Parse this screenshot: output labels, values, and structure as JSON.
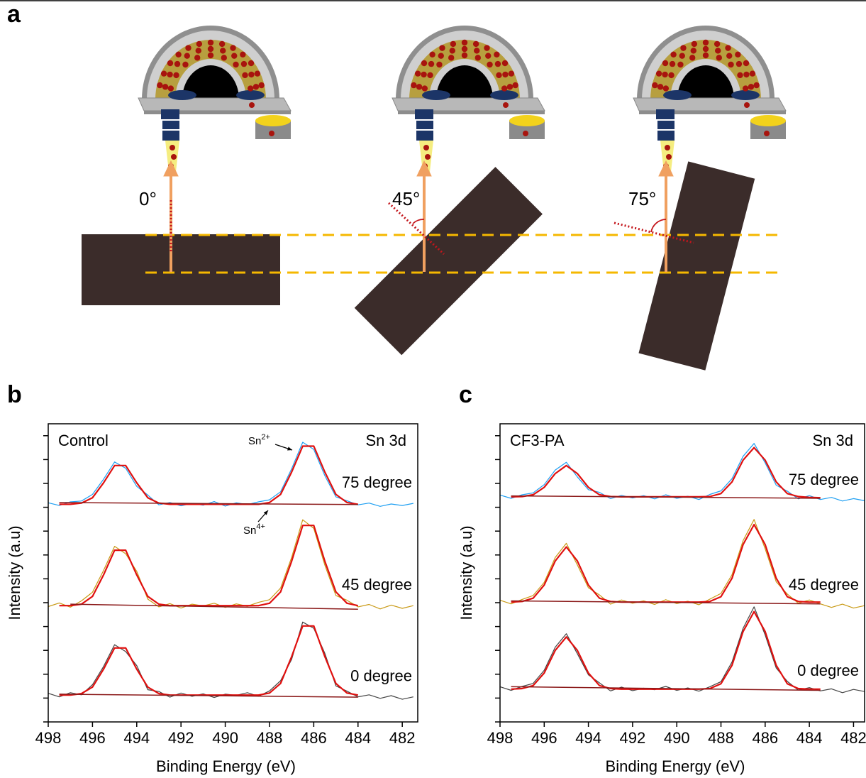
{
  "diagram": {
    "label": "a",
    "angles": [
      "0°",
      "45°",
      "75°"
    ]
  },
  "chart_data": [
    {
      "type": "line",
      "panel": "b",
      "sample": "Control",
      "region": "Sn 3d",
      "x_label": "Binding Energy (eV)",
      "y_label": "Intensity (a.u)",
      "xlim": [
        498,
        481.3
      ],
      "xticks": [
        498,
        496,
        494,
        492,
        490,
        488,
        486,
        484,
        482
      ],
      "ylim": [
        0,
        100
      ],
      "yticks": [
        0,
        8,
        16,
        24,
        32,
        40,
        48,
        56,
        64,
        72,
        80,
        88,
        96
      ],
      "ytick_labels": false,
      "annotations": [
        {
          "text": "Sn",
          "sup": "2+"
        },
        {
          "text": "Sn",
          "sup": "4+"
        }
      ],
      "x": [
        498,
        497.5,
        497,
        496.5,
        496,
        495.5,
        495,
        494.5,
        494,
        493.5,
        493,
        492.5,
        492,
        491.5,
        491,
        490.5,
        490,
        489.5,
        489,
        488.5,
        488,
        487.5,
        487,
        486.5,
        486,
        485.5,
        485,
        484.5,
        484,
        483.5,
        483,
        482.5,
        482,
        481.5
      ],
      "series": [
        {
          "name": "75 degree",
          "color": "#1e9ff2",
          "values": [
            73.5,
            72.6,
            73.8,
            74.1,
            76.3,
            81.4,
            87.2,
            85.1,
            79.0,
            76.1,
            72.8,
            73.6,
            72.5,
            73.3,
            72.7,
            73.9,
            72.4,
            73.5,
            72.9,
            73.8,
            74.5,
            77.2,
            84.9,
            93.8,
            91.4,
            82.6,
            75.5,
            74.2,
            72.8,
            73.4,
            72.3,
            73.1,
            72.6,
            73.3
          ]
        },
        {
          "color": "#e0100f",
          "values": [
            null,
            73,
            73,
            73.4,
            75.2,
            80.2,
            86.0,
            86.0,
            80.2,
            75.2,
            73.4,
            73,
            73,
            73,
            73,
            73,
            73,
            73,
            73,
            73,
            73.6,
            76.3,
            83.8,
            92.5,
            92.5,
            83.8,
            76.3,
            73.6,
            73,
            null,
            null,
            null,
            null,
            null
          ]
        },
        {
          "color": "#8b1a1a",
          "x": [
            497.5,
            484
          ],
          "values": [
            73.6,
            72.9
          ]
        },
        {
          "name": "45 degree",
          "color": "#c99a16",
          "values": [
            38.7,
            39.9,
            38.5,
            40.6,
            43.5,
            50.8,
            58.9,
            56.4,
            50.5,
            41.2,
            38.6,
            39.7,
            38.2,
            39.5,
            38.9,
            39.8,
            38.4,
            39.6,
            38.8,
            40.1,
            41.0,
            44.9,
            55.2,
            67.8,
            64.9,
            52.6,
            42.4,
            40.8,
            38.6,
            39.4,
            37.9,
            39.2,
            38.1,
            39.0
          ]
        },
        {
          "color": "#e0100f",
          "values": [
            null,
            39,
            39,
            39.5,
            42.1,
            49.3,
            57.6,
            57.6,
            49.3,
            42.1,
            39.5,
            39,
            39,
            39,
            39,
            39,
            39,
            39,
            39,
            39,
            39.8,
            43.6,
            53.9,
            65.9,
            65.9,
            53.9,
            43.6,
            39.8,
            39,
            null,
            null,
            null,
            null,
            null
          ]
        },
        {
          "color": "#8b1a1a",
          "x": [
            497,
            484
          ],
          "values": [
            39.5,
            37.8
          ]
        },
        {
          "name": "0 degree",
          "color": "#444444",
          "values": [
            9.6,
            8.4,
            9.8,
            9.1,
            12.5,
            18.6,
            25.9,
            23.6,
            18.9,
            10.8,
            10.2,
            8.3,
            9.7,
            8.6,
            9.4,
            8.2,
            9.3,
            8.9,
            9.8,
            8.6,
            10.4,
            13.8,
            21.0,
            33.5,
            31.4,
            23.0,
            12.1,
            10.3,
            8.4,
            9.1,
            7.9,
            8.8,
            7.6,
            8.4
          ]
        },
        {
          "color": "#e0100f",
          "values": [
            null,
            9,
            9,
            9.5,
            11.7,
            17.7,
            24.8,
            24.8,
            17.7,
            11.7,
            9.5,
            9,
            9,
            9,
            9,
            9,
            9,
            9,
            9,
            9,
            9.7,
            12.9,
            21.9,
            32.2,
            32.2,
            21.9,
            12.9,
            9.7,
            9,
            null,
            null,
            null,
            null,
            null
          ]
        },
        {
          "color": "#8b1a1a",
          "x": [
            497.5,
            484
          ],
          "values": [
            9.3,
            8.3
          ]
        }
      ]
    },
    {
      "type": "line",
      "panel": "c",
      "sample": "CF3-PA",
      "region": "Sn 3d",
      "x_label": "Binding Energy (eV)",
      "y_label": "Intensity (a.u)",
      "xlim": [
        498,
        481.5
      ],
      "xticks": [
        498,
        496,
        494,
        492,
        490,
        488,
        486,
        484,
        482
      ],
      "ylim": [
        0,
        100
      ],
      "yticks": [
        0,
        8,
        16,
        24,
        32,
        40,
        48,
        56,
        64,
        72,
        80,
        88,
        96
      ],
      "ytick_labels": false,
      "x": [
        498,
        497.5,
        497,
        496.5,
        496,
        495.5,
        495,
        494.5,
        494,
        493.5,
        493,
        492.5,
        492,
        491.5,
        491,
        490.5,
        490,
        489.5,
        489,
        488.5,
        488,
        487.5,
        487,
        486.5,
        486,
        485.5,
        485,
        484.5,
        484,
        483.5,
        483,
        482.5,
        482,
        481.5
      ],
      "series": [
        {
          "name": "75 degree",
          "color": "#1e9ff2",
          "values": [
            76.1,
            75.0,
            76.2,
            76.8,
            79.6,
            84.5,
            87.1,
            82.2,
            77.9,
            77.0,
            74.9,
            76.0,
            75.1,
            75.9,
            74.8,
            76.2,
            75.0,
            75.7,
            74.6,
            76.3,
            77.5,
            81.6,
            89.1,
            93.4,
            86.9,
            79.4,
            77.4,
            74.8,
            75.9,
            74.6,
            75.3,
            74.1,
            74.9,
            74.2
          ]
        },
        {
          "color": "#e0100f",
          "values": [
            null,
            75.5,
            75.6,
            76.2,
            78.7,
            83.3,
            86.0,
            83.3,
            78.7,
            76.2,
            75.6,
            75.5,
            75.5,
            75.5,
            75.5,
            75.5,
            75.5,
            75.5,
            75.5,
            75.6,
            76.6,
            80.5,
            87.8,
            92.0,
            87.8,
            80.5,
            76.6,
            75.6,
            75.3,
            75.2,
            null,
            null,
            null,
            null
          ]
        },
        {
          "color": "#8b1a1a",
          "x": [
            497.5,
            483.5
          ],
          "values": [
            75.8,
            75.0
          ]
        },
        {
          "name": "45 degree",
          "color": "#c99a16",
          "values": [
            40.8,
            39.6,
            41.1,
            42.4,
            46.8,
            55.2,
            59.9,
            52.7,
            45.0,
            42.6,
            39.5,
            40.9,
            39.8,
            40.6,
            39.4,
            41.0,
            39.7,
            40.5,
            39.3,
            41.2,
            43.1,
            49.4,
            60.8,
            67.9,
            58.1,
            47.0,
            42.9,
            39.8,
            40.9,
            39.6,
            38.4,
            39.5,
            38.2,
            39.0
          ]
        },
        {
          "color": "#e0100f",
          "values": [
            null,
            40.2,
            40.4,
            41.5,
            45.9,
            54.0,
            58.7,
            54.0,
            45.9,
            41.5,
            40.4,
            40.2,
            40.2,
            40.2,
            40.2,
            40.2,
            40.2,
            40.2,
            40.2,
            40.4,
            42.0,
            48.2,
            59.5,
            66.2,
            59.5,
            48.2,
            42.0,
            40.4,
            40.2,
            40.2,
            null,
            null,
            null,
            null
          ]
        },
        {
          "color": "#8b1a1a",
          "x": [
            497.5,
            483.5
          ],
          "values": [
            40.6,
            39.6
          ]
        },
        {
          "name": "0 degree",
          "color": "#444444",
          "values": [
            11.8,
            10.6,
            11.9,
            12.9,
            17.3,
            25.1,
            29.6,
            22.9,
            15.8,
            13.1,
            10.4,
            11.7,
            10.5,
            11.3,
            10.8,
            11.9,
            10.6,
            11.4,
            10.3,
            11.8,
            13.5,
            20.1,
            31.4,
            38.6,
            29.2,
            18.1,
            13.6,
            10.7,
            11.5,
            10.4,
            11.1,
            9.8,
            10.9,
            10.2
          ]
        },
        {
          "color": "#e0100f",
          "values": [
            null,
            11,
            11.2,
            12.2,
            16.4,
            24.0,
            28.5,
            24.0,
            16.4,
            12.2,
            11.2,
            11,
            11,
            11,
            11,
            11,
            11,
            11,
            11,
            11.2,
            12.8,
            19.0,
            30.3,
            37.0,
            30.3,
            19.0,
            12.8,
            11.2,
            11,
            11,
            null,
            null,
            null,
            null
          ]
        },
        {
          "color": "#8b1a1a",
          "x": [
            497.5,
            483.5
          ],
          "values": [
            11.8,
            10.6
          ]
        }
      ]
    }
  ]
}
